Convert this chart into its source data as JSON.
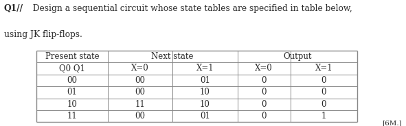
{
  "title_bold": "Q1//",
  "title_rest": "  Design a sequential circuit whose state tables are specified in table below,",
  "title_line2": "using JK flip-flops.",
  "col_headers_row1": [
    "Present state",
    "Next state",
    "Output"
  ],
  "col_headers_row2": [
    "Q0 Q1",
    "X=0",
    "X=1",
    "X=0",
    "X=1"
  ],
  "rows": [
    [
      "00",
      "00",
      "01",
      "0",
      "0"
    ],
    [
      "01",
      "00",
      "10",
      "0",
      "0"
    ],
    [
      "10",
      "11",
      "10",
      "0",
      "0"
    ],
    [
      "11",
      "00",
      "01",
      "0",
      "1"
    ]
  ],
  "footer": "[6M.]",
  "bg_color": "#ffffff",
  "text_color": "#2a2a2a",
  "line_color": "#888888",
  "font_size_title": 8.8,
  "font_size_table": 8.5
}
